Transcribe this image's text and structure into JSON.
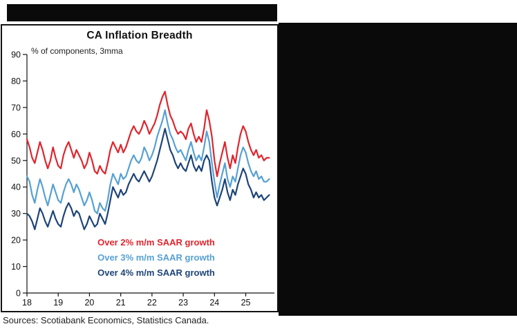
{
  "chart_data": {
    "type": "line",
    "title": "CA Inflation Breadth",
    "subtitle": "% of components, 3mma",
    "ylabel": "% of components",
    "ylim": [
      0,
      90
    ],
    "yticks": [
      0,
      10,
      20,
      30,
      40,
      50,
      60,
      70,
      80,
      90
    ],
    "x_tick_labels": [
      "18",
      "19",
      "20",
      "21",
      "22",
      "23",
      "24",
      "25"
    ],
    "x_start": "2018-01",
    "x_end": "2025-10",
    "x_ticks_every_months": 12,
    "legend_position": "inside-lower-center",
    "grid": false,
    "series": [
      {
        "name": "Over 2% m/m SAAR growth",
        "color": "#e0242c",
        "values": [
          58,
          55,
          51,
          49,
          53,
          57,
          54,
          50,
          47,
          50,
          55,
          51,
          48,
          47,
          52,
          55,
          57,
          54,
          51,
          54,
          52,
          50,
          47,
          49,
          53,
          50,
          46,
          45,
          48,
          46,
          45,
          49,
          54,
          57,
          55,
          53,
          56,
          53,
          55,
          58,
          61,
          63,
          61,
          60,
          62,
          65,
          63,
          60,
          62,
          64,
          67,
          71,
          74,
          76,
          71,
          67,
          65,
          62,
          60,
          61,
          60,
          58,
          62,
          64,
          60,
          57,
          59,
          57,
          62,
          69,
          65,
          59,
          50,
          44,
          49,
          53,
          57,
          51,
          47,
          52,
          49,
          55,
          60,
          63,
          61,
          57,
          54,
          52,
          54,
          51,
          52,
          50,
          51,
          51
        ]
      },
      {
        "name": "Over 3% m/m SAAR growth",
        "color": "#56a0d3",
        "values": [
          44,
          42,
          37,
          34,
          39,
          43,
          40,
          36,
          33,
          37,
          41,
          38,
          35,
          34,
          38,
          41,
          43,
          41,
          38,
          41,
          39,
          36,
          33,
          35,
          38,
          35,
          31,
          30,
          34,
          32,
          31,
          35,
          41,
          45,
          43,
          41,
          45,
          43,
          44,
          47,
          50,
          52,
          50,
          49,
          51,
          55,
          53,
          50,
          52,
          55,
          59,
          62,
          65,
          69,
          64,
          60,
          58,
          55,
          53,
          54,
          52,
          50,
          54,
          57,
          53,
          50,
          52,
          50,
          55,
          61,
          57,
          49,
          42,
          36,
          41,
          45,
          49,
          43,
          40,
          44,
          42,
          47,
          52,
          55,
          53,
          49,
          46,
          44,
          46,
          43,
          44,
          42,
          42,
          43
        ]
      },
      {
        "name": "Over 4% m/m SAAR growth",
        "color": "#1c4377",
        "values": [
          30,
          29,
          27,
          24,
          28,
          32,
          30,
          27,
          25,
          28,
          31,
          28,
          26,
          25,
          29,
          32,
          34,
          32,
          29,
          31,
          30,
          27,
          24,
          26,
          29,
          27,
          25,
          26,
          30,
          28,
          26,
          30,
          35,
          40,
          38,
          36,
          39,
          37,
          38,
          41,
          43,
          45,
          43,
          42,
          44,
          46,
          44,
          42,
          44,
          47,
          50,
          54,
          58,
          62,
          58,
          54,
          52,
          49,
          47,
          49,
          47,
          46,
          49,
          52,
          48,
          46,
          48,
          46,
          50,
          52,
          50,
          42,
          36,
          33,
          36,
          39,
          43,
          38,
          35,
          39,
          37,
          41,
          44,
          47,
          45,
          41,
          39,
          36,
          38,
          36,
          37,
          35,
          36,
          37
        ]
      }
    ],
    "source": "Sources: Scotiabank Economics, Statistics Canada."
  }
}
